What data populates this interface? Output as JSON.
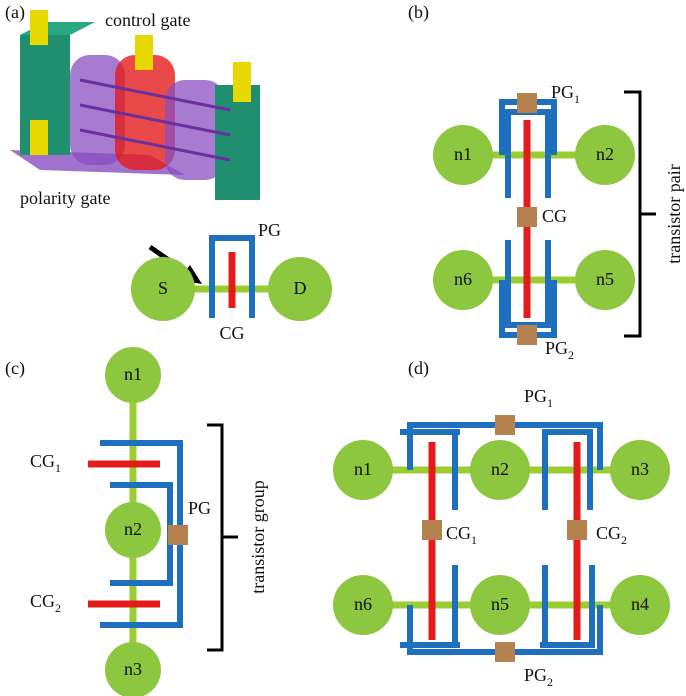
{
  "panel_a": {
    "label": "(a)",
    "annotations": [
      "control gate",
      "polarity gate"
    ],
    "nodes": [
      "S",
      "D"
    ],
    "gates": [
      "PG",
      "CG"
    ]
  },
  "panel_b": {
    "label": "(b)",
    "nodes": [
      "n1",
      "n2",
      "n6",
      "n5"
    ],
    "gates": [
      {
        "name": "PG",
        "sub": "1"
      },
      {
        "name": "CG"
      },
      {
        "name": "PG",
        "sub": "2"
      }
    ],
    "group_label": "transistor pair"
  },
  "panel_c": {
    "label": "(c)",
    "nodes": [
      "n1",
      "n2",
      "n3"
    ],
    "gates": [
      {
        "name": "CG",
        "sub": "1"
      },
      {
        "name": "PG"
      },
      {
        "name": "CG",
        "sub": "2"
      }
    ],
    "group_label": "transistor group"
  },
  "panel_d": {
    "label": "(d)",
    "nodes": [
      "n1",
      "n2",
      "n3",
      "n6",
      "n5",
      "n4"
    ],
    "gates": [
      {
        "name": "PG",
        "sub": "1"
      },
      {
        "name": "CG",
        "sub": "1"
      },
      {
        "name": "CG",
        "sub": "2"
      },
      {
        "name": "PG",
        "sub": "2"
      }
    ]
  }
}
